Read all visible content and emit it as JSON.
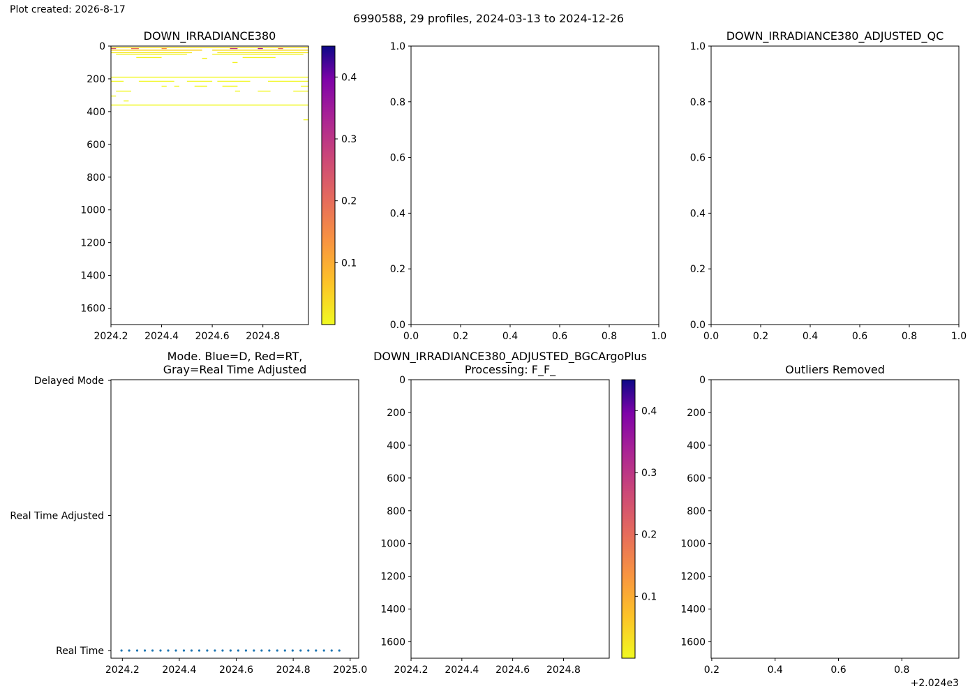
{
  "header": {
    "created": "Plot created: 2026-8-17",
    "suptitle": "6990588, 29 profiles, 2024-03-13 to 2024-12-26"
  },
  "chart_data": [
    {
      "id": "raw",
      "type": "heatmap",
      "title": "DOWN_IRRADIANCE380",
      "xlim": [
        2024.2,
        2024.98
      ],
      "ylim": [
        1700,
        0
      ],
      "x_ticks": [
        "2024.2",
        "2024.4",
        "2024.6",
        "2024.8"
      ],
      "y_ticks": [
        "0",
        "200",
        "400",
        "600",
        "800",
        "1000",
        "1200",
        "1400",
        "1600"
      ],
      "colorbar": {
        "colormap": "plasma_r",
        "range": [
          0,
          0.45
        ],
        "ticks": [
          "0.1",
          "0.2",
          "0.3",
          "0.4"
        ]
      },
      "segments": [
        {
          "x0": 2024.2,
          "x1": 2024.98,
          "y": 10,
          "v": 0.03
        },
        {
          "x0": 2024.2,
          "x1": 2024.22,
          "y": 15,
          "v": 0.25
        },
        {
          "x0": 2024.28,
          "x1": 2024.31,
          "y": 15,
          "v": 0.2
        },
        {
          "x0": 2024.4,
          "x1": 2024.42,
          "y": 15,
          "v": 0.15
        },
        {
          "x0": 2024.67,
          "x1": 2024.7,
          "y": 15,
          "v": 0.3
        },
        {
          "x0": 2024.78,
          "x1": 2024.8,
          "y": 15,
          "v": 0.35
        },
        {
          "x0": 2024.86,
          "x1": 2024.88,
          "y": 15,
          "v": 0.22
        },
        {
          "x0": 2024.2,
          "x1": 2024.56,
          "y": 25,
          "v": 0.05
        },
        {
          "x0": 2024.6,
          "x1": 2024.98,
          "y": 25,
          "v": 0.04
        },
        {
          "x0": 2024.2,
          "x1": 2024.52,
          "y": 40,
          "v": 0.02
        },
        {
          "x0": 2024.62,
          "x1": 2024.98,
          "y": 40,
          "v": 0.02
        },
        {
          "x0": 2024.22,
          "x1": 2024.5,
          "y": 50,
          "v": 0.01
        },
        {
          "x0": 2024.6,
          "x1": 2024.96,
          "y": 50,
          "v": 0.01
        },
        {
          "x0": 2024.3,
          "x1": 2024.4,
          "y": 70,
          "v": 0.01
        },
        {
          "x0": 2024.56,
          "x1": 2024.58,
          "y": 75,
          "v": 0.01
        },
        {
          "x0": 2024.72,
          "x1": 2024.85,
          "y": 70,
          "v": 0.01
        },
        {
          "x0": 2024.68,
          "x1": 2024.7,
          "y": 100,
          "v": 0.01
        },
        {
          "x0": 2024.2,
          "x1": 2024.98,
          "y": 190,
          "v": 0.003
        },
        {
          "x0": 2024.2,
          "x1": 2024.25,
          "y": 215,
          "v": 0.003
        },
        {
          "x0": 2024.31,
          "x1": 2024.45,
          "y": 215,
          "v": 0.003
        },
        {
          "x0": 2024.5,
          "x1": 2024.6,
          "y": 215,
          "v": 0.003
        },
        {
          "x0": 2024.62,
          "x1": 2024.75,
          "y": 215,
          "v": 0.003
        },
        {
          "x0": 2024.82,
          "x1": 2024.98,
          "y": 215,
          "v": 0.003
        },
        {
          "x0": 2024.4,
          "x1": 2024.42,
          "y": 245,
          "v": 0.003
        },
        {
          "x0": 2024.45,
          "x1": 2024.47,
          "y": 245,
          "v": 0.003
        },
        {
          "x0": 2024.53,
          "x1": 2024.58,
          "y": 245,
          "v": 0.003
        },
        {
          "x0": 2024.64,
          "x1": 2024.7,
          "y": 245,
          "v": 0.003
        },
        {
          "x0": 2024.95,
          "x1": 2024.98,
          "y": 245,
          "v": 0.003
        },
        {
          "x0": 2024.22,
          "x1": 2024.28,
          "y": 275,
          "v": 0.003
        },
        {
          "x0": 2024.69,
          "x1": 2024.71,
          "y": 275,
          "v": 0.003
        },
        {
          "x0": 2024.78,
          "x1": 2024.83,
          "y": 275,
          "v": 0.003
        },
        {
          "x0": 2024.92,
          "x1": 2024.98,
          "y": 275,
          "v": 0.003
        },
        {
          "x0": 2024.2,
          "x1": 2024.22,
          "y": 305,
          "v": 0.003
        },
        {
          "x0": 2024.25,
          "x1": 2024.27,
          "y": 335,
          "v": 0.003
        },
        {
          "x0": 2024.2,
          "x1": 2024.98,
          "y": 360,
          "v": 0.002
        },
        {
          "x0": 2024.96,
          "x1": 2024.98,
          "y": 450,
          "v": 0.002
        }
      ]
    },
    {
      "id": "adjqc",
      "type": "scatter",
      "title": "",
      "xlim": [
        0,
        1
      ],
      "ylim": [
        0,
        1
      ],
      "x_ticks": [
        "0.0",
        "0.2",
        "0.4",
        "0.6",
        "0.8",
        "1.0"
      ],
      "y_ticks": [
        "0.0",
        "0.2",
        "0.4",
        "0.6",
        "0.8",
        "1.0"
      ]
    },
    {
      "id": "adjqc2",
      "type": "scatter",
      "title": "DOWN_IRRADIANCE380_ADJUSTED_QC",
      "xlim": [
        0,
        1
      ],
      "ylim": [
        0,
        1
      ],
      "x_ticks": [
        "0.0",
        "0.2",
        "0.4",
        "0.6",
        "0.8",
        "1.0"
      ],
      "y_ticks": [
        "0.0",
        "0.2",
        "0.4",
        "0.6",
        "0.8",
        "1.0"
      ]
    },
    {
      "id": "mode",
      "type": "scatter",
      "title": [
        "Mode. Blue=D, Red=RT,",
        "Gray=Real Time Adjusted"
      ],
      "xlim": [
        2024.16,
        2025.03
      ],
      "x_ticks": [
        "2024.2",
        "2024.4",
        "2024.6",
        "2024.8",
        "2025.0"
      ],
      "y_categories": [
        "Real Time",
        "Real Time Adjusted",
        "Delayed Mode"
      ],
      "point_color": "#1f77b4",
      "x": [
        2024.197,
        2024.224,
        2024.252,
        2024.279,
        2024.306,
        2024.334,
        2024.361,
        2024.388,
        2024.416,
        2024.443,
        2024.47,
        2024.498,
        2024.525,
        2024.552,
        2024.58,
        2024.607,
        2024.634,
        2024.662,
        2024.689,
        2024.716,
        2024.744,
        2024.771,
        2024.798,
        2024.826,
        2024.853,
        2024.88,
        2024.908,
        2024.935,
        2024.962
      ],
      "y": [
        "Real Time",
        "Real Time",
        "Real Time",
        "Real Time",
        "Real Time",
        "Real Time",
        "Real Time",
        "Real Time",
        "Real Time",
        "Real Time",
        "Real Time",
        "Real Time",
        "Real Time",
        "Real Time",
        "Real Time",
        "Real Time",
        "Real Time",
        "Real Time",
        "Real Time",
        "Real Time",
        "Real Time",
        "Real Time",
        "Real Time",
        "Real Time",
        "Real Time",
        "Real Time",
        "Real Time",
        "Real Time",
        "Real Time"
      ]
    },
    {
      "id": "bgc",
      "type": "heatmap",
      "title": [
        "DOWN_IRRADIANCE380_ADJUSTED_BGCArgoPlus",
        "Processing: F_F_"
      ],
      "xlim": [
        2024.2,
        2024.98
      ],
      "ylim": [
        1700,
        0
      ],
      "x_ticks": [
        "2024.2",
        "2024.4",
        "2024.6",
        "2024.8"
      ],
      "y_ticks": [
        "0",
        "200",
        "400",
        "600",
        "800",
        "1000",
        "1200",
        "1400",
        "1600"
      ],
      "colorbar": {
        "colormap": "plasma_r",
        "range": [
          0,
          0.45
        ],
        "ticks": [
          "0.1",
          "0.2",
          "0.3",
          "0.4"
        ]
      },
      "segments": []
    },
    {
      "id": "outliers",
      "type": "scatter",
      "title": "Outliers Removed",
      "xlim": [
        0.198,
        0.98
      ],
      "ylim": [
        1700,
        0
      ],
      "x_ticks": [
        "0.2",
        "0.4",
        "0.6",
        "0.8"
      ],
      "y_ticks": [
        "0",
        "200",
        "400",
        "600",
        "800",
        "1000",
        "1200",
        "1400",
        "1600"
      ],
      "offset_text": "+2.024e3"
    }
  ]
}
